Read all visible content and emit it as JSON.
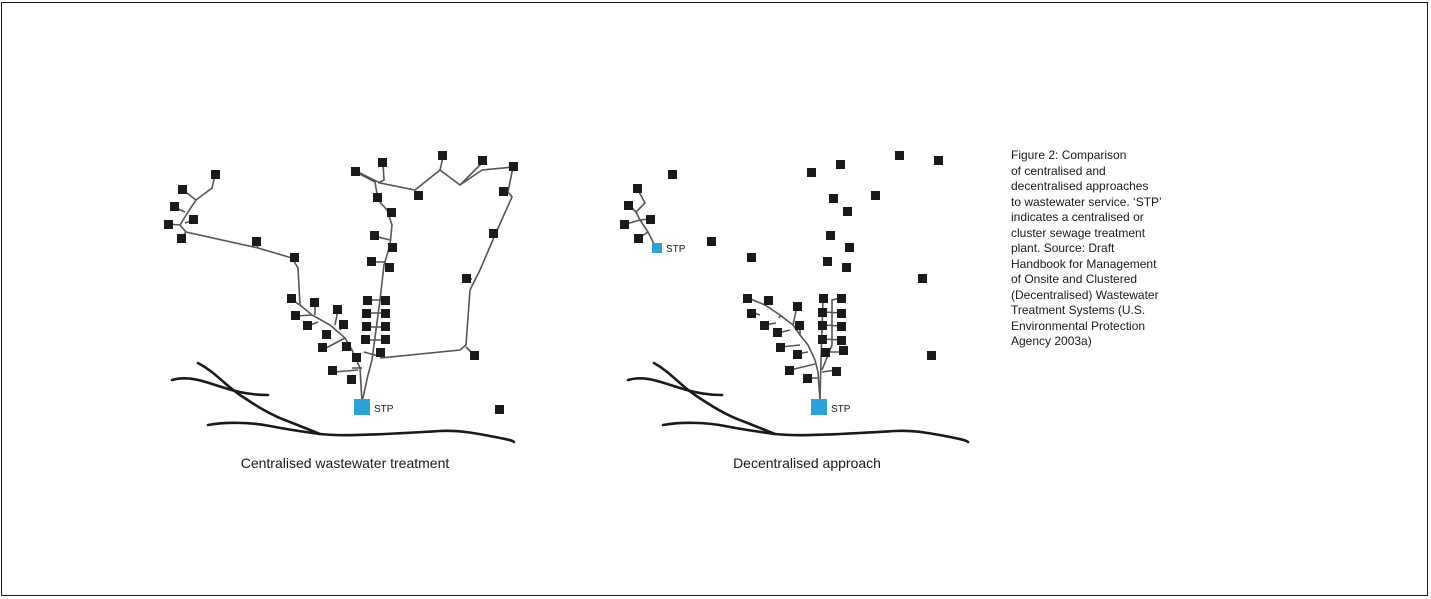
{
  "panels": {
    "left_caption": "Centralised wastewater treatment",
    "right_caption": "Decentralised approach",
    "stp_label": "STP"
  },
  "figure_caption": [
    "Figure 2: Comparison",
    "of centralised and",
    "decentralised approaches",
    "to wastewater service. ‘STP’",
    "indicates a centralised or",
    "cluster sewage treatment",
    "plant. Source: Draft",
    "Handbook for Management",
    "of Onsite and Clustered",
    "(Decentralised) Wastewater",
    "Treatment Systems (U.S.",
    "Environmental Protection",
    "Agency 2003a)"
  ],
  "colors": {
    "stp": "#2aa3dc",
    "house": "#1a1a1a",
    "pipe": "#555555"
  }
}
